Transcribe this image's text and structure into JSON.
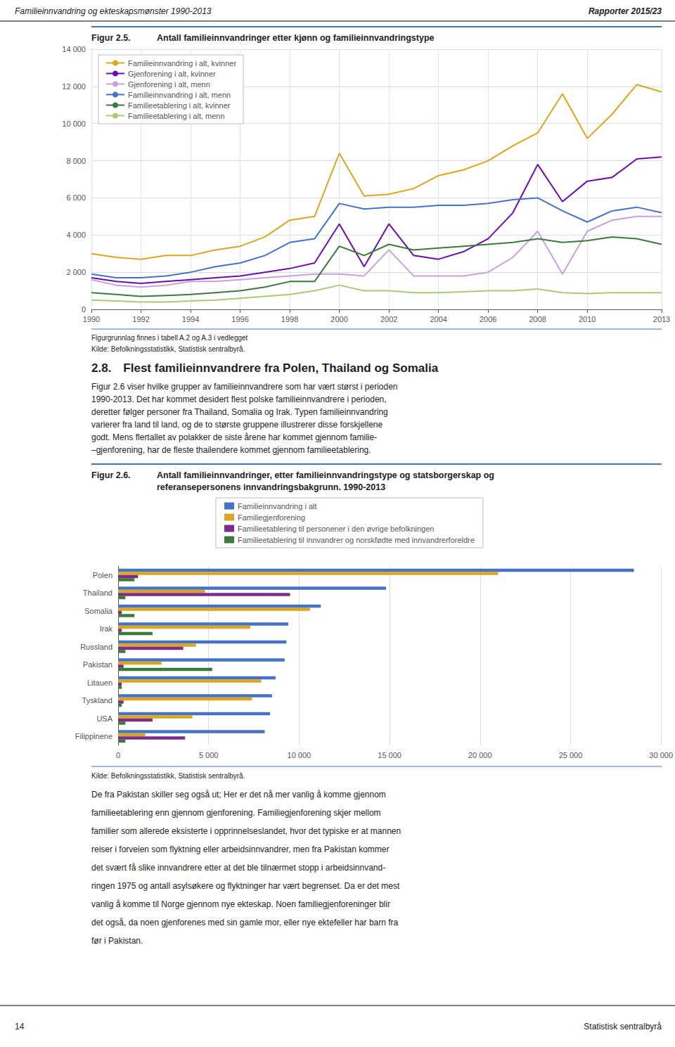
{
  "chart_data": [
    {
      "type": "line",
      "title": "Figur 2.5.",
      "subtitle": "Antall familieinnvandringer etter kjønn og familieinnvandringstype",
      "x": [
        1990,
        1991,
        1992,
        1993,
        1994,
        1995,
        1996,
        1997,
        1998,
        1999,
        2000,
        2001,
        2002,
        2003,
        2004,
        2005,
        2006,
        2007,
        2008,
        2009,
        2010,
        2011,
        2012,
        2013
      ],
      "series": [
        {
          "name": "Familieinnvandring i alt, kvinner",
          "color": "#DAA520",
          "values": [
            3000,
            2800,
            2700,
            2900,
            2900,
            3200,
            3400,
            3900,
            4800,
            5000,
            8400,
            6100,
            6200,
            6500,
            7200,
            7500,
            8000,
            8800,
            9500,
            11600,
            9200,
            10500,
            12100,
            11700
          ]
        },
        {
          "name": "Gjenforening i alt, kvinner",
          "color": "#6A0DAD",
          "values": [
            1700,
            1500,
            1400,
            1500,
            1600,
            1700,
            1800,
            2000,
            2200,
            2500,
            4600,
            2300,
            4600,
            2900,
            2700,
            3100,
            3800,
            5200,
            7800,
            5800,
            6900,
            7100,
            8100,
            8200
          ]
        },
        {
          "name": "Gjenforening i alt, menn",
          "color": "#C9A0DC",
          "values": [
            1600,
            1300,
            1200,
            1300,
            1500,
            1500,
            1600,
            1700,
            1800,
            1900,
            1900,
            1800,
            3200,
            1800,
            1800,
            1800,
            2000,
            2800,
            4200,
            1900,
            4200,
            4800,
            5000,
            5000
          ]
        },
        {
          "name": "Familieinnvandring i alt, menn",
          "color": "#4472C4",
          "values": [
            1900,
            1700,
            1700,
            1800,
            2000,
            2300,
            2500,
            2900,
            3600,
            3800,
            5700,
            5400,
            5500,
            5500,
            5600,
            5600,
            5700,
            5900,
            6000,
            5300,
            4700,
            5300,
            5500,
            5200
          ]
        },
        {
          "name": "Familieetablering i alt, kvinner",
          "color": "#3A7A3A",
          "values": [
            900,
            800,
            700,
            750,
            800,
            900,
            1000,
            1200,
            1500,
            1500,
            3400,
            2900,
            3500,
            3200,
            3300,
            3400,
            3500,
            3600,
            3800,
            3600,
            3700,
            3900,
            3800,
            3500
          ]
        },
        {
          "name": "Familieetablering i alt, menn",
          "color": "#AACB72",
          "values": [
            500,
            450,
            400,
            400,
            450,
            500,
            600,
            700,
            800,
            1000,
            1300,
            1000,
            1000,
            900,
            900,
            950,
            1000,
            1000,
            1100,
            900,
            850,
            900,
            900,
            900
          ]
        }
      ],
      "xlim": [
        1990,
        2013
      ],
      "xticks": [
        1990,
        1992,
        1994,
        1996,
        1998,
        2000,
        2002,
        2004,
        2006,
        2008,
        2010,
        2013
      ],
      "ylim": [
        0,
        14000
      ],
      "yticks": [
        0,
        {
          "value": 2000,
          "label": "2 000"
        },
        {
          "value": 4000,
          "label": "4 000"
        },
        {
          "value": 6000,
          "label": "6 000"
        },
        {
          "value": 8000,
          "label": "8 000"
        },
        {
          "value": 10000,
          "label": "10 000"
        },
        {
          "value": 12000,
          "label": "12 000"
        },
        {
          "value": 14000,
          "label": "14 000"
        }
      ],
      "grid": true,
      "legend": "upper left",
      "annotations": [
        "Familieinnvandring og ekteskapsmønster 1990-2013",
        "Rapporter 2015/23",
        "Figurgrunnlag finnes i tabell A.2 og A.3 i vedlegget",
        "Kilde: Befolkningsstatistikk, Statistisk sentralbyrå.",
        "2.8. Flest familieinnvandrere fra Polen, Thailand og Somalia",
        "Figur 2.6 viser hvilke grupper av familieinnvandrere som har vært størst i perioden",
        "1990-2013. Det har kommet desidert flest polske familieinnvandrere i perioden,",
        "deretter følger personer fra Thailand, Somalia og Irak. Typen familieinnvandring",
        "varierer fra land til land, og de to største gruppene illustrerer disse forskjellene",
        "godt. Mens flertallet av polakker de siste årene har kommet gjennom familie-",
        "–gjenforening, har de fleste thailendere kommet gjennom familieetablering."
      ]
    },
    {
      "type": "bar",
      "orientation": "horizontal",
      "title": "Figur 2.6.",
      "subtitle": "Antall familieinnvandringer, etter familieinnvandringstype og statsborgerskap og\nreferansepersonens innvandringsbakgrunn. 1990-2013",
      "categories": [
        "Polen",
        "Thailand",
        "Somalia",
        "Irak",
        "Russland",
        "Pakistan",
        "Litauen",
        "Tyskland",
        "USA",
        "Filippinene"
      ],
      "series": [
        {
          "name": "Familieinnvandring i alt",
          "color": "#4472C4",
          "values": [
            28500,
            14800,
            11200,
            9400,
            9300,
            9200,
            8700,
            8500,
            8400,
            8100
          ]
        },
        {
          "name": "Familiegjenforening",
          "color": "#DAA520",
          "values": [
            21000,
            4800,
            10600,
            7300,
            4300,
            2400,
            7900,
            7400,
            4100,
            1500
          ]
        },
        {
          "name": "Familieetablering til personener i den øvrige befolkningen",
          "color": "#7B2D8B",
          "values": [
            1100,
            9500,
            200,
            200,
            3600,
            300,
            200,
            300,
            1900,
            3700
          ]
        },
        {
          "name": "Familieetablering til innvandrer og norskfødte med innvandrerforeldre",
          "color": "#3A7A3A",
          "values": [
            900,
            400,
            900,
            1900,
            400,
            5200,
            200,
            200,
            400,
            400
          ]
        }
      ],
      "xlim": [
        0,
        30000
      ],
      "xticks": [
        0,
        {
          "value": 5000,
          "label": "5 000"
        },
        {
          "value": 10000,
          "label": "10 000"
        },
        {
          "value": 15000,
          "label": "15 000"
        },
        {
          "value": 20000,
          "label": "20 000"
        },
        {
          "value": 25000,
          "label": "25 000"
        },
        {
          "value": 30000,
          "label": "30 000"
        }
      ],
      "grid": true,
      "legend": "top",
      "annotations": [
        "Kilde: Befolkningsstatistikk, Statistisk sentralbyrå.",
        "De fra Pakistan skiller seg også ut; Her er det nå mer vanlig å komme gjennom",
        "familieetablering enn gjennom gjenforening. Familiegjenforening skjer mellom",
        "familier som allerede eksisterte i opprinnelseslandet, hvor det typiske er at mannen",
        "reiser i forveien som flyktning eller arbeidsinnvandrer, men fra Pakistan kommer",
        "det svært få slike innvandrere etter at det ble tilnærmet stopp i arbeidsinnvand-",
        "ringen 1975 og antall asylsøkere og flyktninger har vært begrenset. Da er det mest",
        "vanlig å komme til Norge gjennom nye ekteskap. Noen familiegjenforeninger blir",
        "det også, da noen gjenforenes med sin gamle mor, eller nye ektefeller har barn fra",
        "før i Pakistan.",
        "14",
        "Statistisk sentralbyrå"
      ]
    }
  ]
}
